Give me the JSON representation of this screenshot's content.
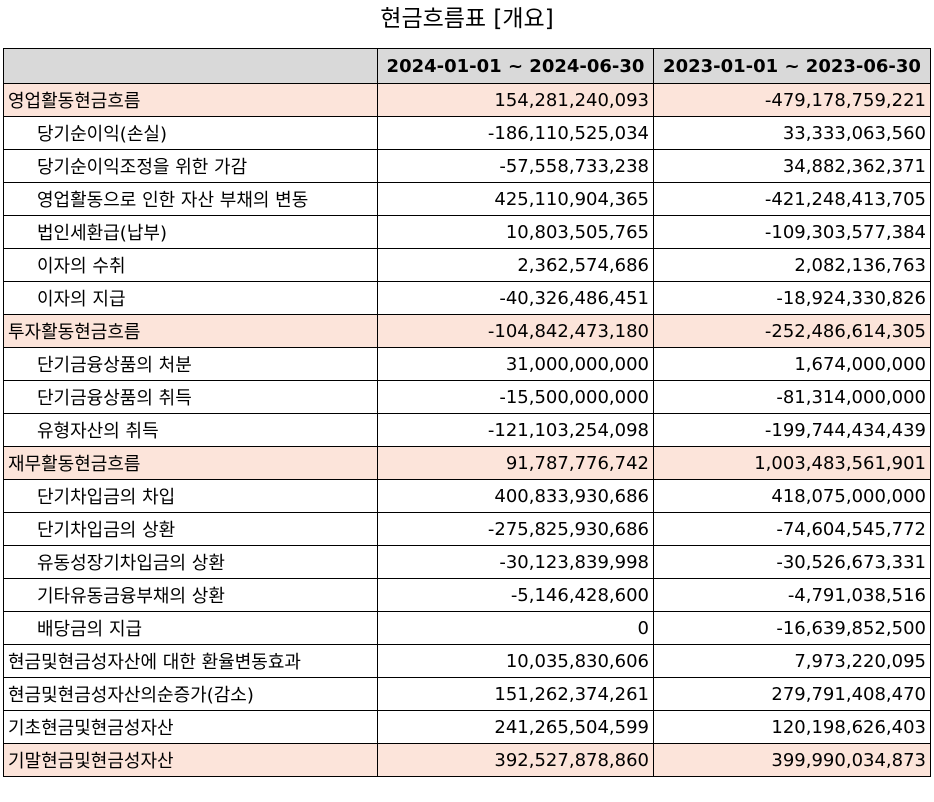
{
  "title": "현금흐름표 [개요]",
  "headers": [
    "",
    "2024-01-01 ~ 2024-06-30",
    "2023-01-01 ~ 2023-06-30"
  ],
  "rows": [
    {
      "label": "영업활동현금흐름",
      "v1": "154,281,240,093",
      "v2": "-479,178,759,221",
      "highlight": true,
      "indent": false
    },
    {
      "label": "당기순이익(손실)",
      "v1": "-186,110,525,034",
      "v2": "33,333,063,560",
      "highlight": false,
      "indent": true
    },
    {
      "label": "당기순이익조정을 위한 가감",
      "v1": "-57,558,733,238",
      "v2": "34,882,362,371",
      "highlight": false,
      "indent": true
    },
    {
      "label": "영업활동으로 인한 자산 부채의 변동",
      "v1": "425,110,904,365",
      "v2": "-421,248,413,705",
      "highlight": false,
      "indent": true
    },
    {
      "label": "법인세환급(납부)",
      "v1": "10,803,505,765",
      "v2": "-109,303,577,384",
      "highlight": false,
      "indent": true
    },
    {
      "label": "이자의 수취",
      "v1": "2,362,574,686",
      "v2": "2,082,136,763",
      "highlight": false,
      "indent": true
    },
    {
      "label": "이자의 지급",
      "v1": "-40,326,486,451",
      "v2": "-18,924,330,826",
      "highlight": false,
      "indent": true
    },
    {
      "label": "투자활동현금흐름",
      "v1": "-104,842,473,180",
      "v2": "-252,486,614,305",
      "highlight": true,
      "indent": false
    },
    {
      "label": "단기금융상품의 처분",
      "v1": "31,000,000,000",
      "v2": "1,674,000,000",
      "highlight": false,
      "indent": true
    },
    {
      "label": "단기금융상품의 취득",
      "v1": "-15,500,000,000",
      "v2": "-81,314,000,000",
      "highlight": false,
      "indent": true
    },
    {
      "label": "유형자산의 취득",
      "v1": "-121,103,254,098",
      "v2": "-199,744,434,439",
      "highlight": false,
      "indent": true
    },
    {
      "label": "재무활동현금흐름",
      "v1": "91,787,776,742",
      "v2": "1,003,483,561,901",
      "highlight": true,
      "indent": false
    },
    {
      "label": "단기차입금의 차입",
      "v1": "400,833,930,686",
      "v2": "418,075,000,000",
      "highlight": false,
      "indent": true
    },
    {
      "label": "단기차입금의 상환",
      "v1": "-275,825,930,686",
      "v2": "-74,604,545,772",
      "highlight": false,
      "indent": true
    },
    {
      "label": "유동성장기차입금의 상환",
      "v1": "-30,123,839,998",
      "v2": "-30,526,673,331",
      "highlight": false,
      "indent": true
    },
    {
      "label": "기타유동금융부채의 상환",
      "v1": "-5,146,428,600",
      "v2": "-4,791,038,516",
      "highlight": false,
      "indent": true
    },
    {
      "label": "배당금의 지급",
      "v1": "0",
      "v2": "-16,639,852,500",
      "highlight": false,
      "indent": true
    },
    {
      "label": "현금및현금성자산에 대한 환율변동효과",
      "v1": "10,035,830,606",
      "v2": "7,973,220,095",
      "highlight": false,
      "indent": false
    },
    {
      "label": "현금및현금성자산의순증가(감소)",
      "v1": "151,262,374,261",
      "v2": "279,791,408,470",
      "highlight": false,
      "indent": false
    },
    {
      "label": "기초현금및현금성자산",
      "v1": "241,265,504,599",
      "v2": "120,198,626,403",
      "highlight": false,
      "indent": false
    },
    {
      "label": "기말현금및현금성자산",
      "v1": "392,527,878,860",
      "v2": "399,990,034,873",
      "highlight": true,
      "indent": false
    }
  ]
}
